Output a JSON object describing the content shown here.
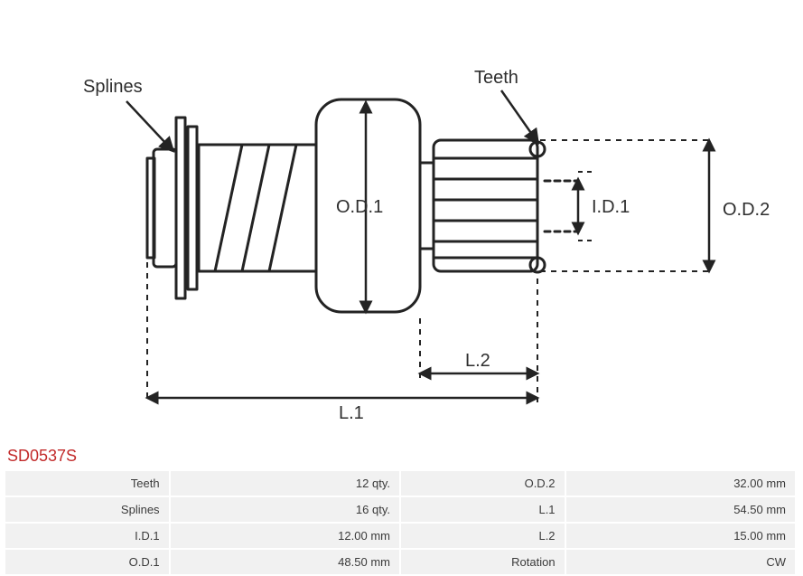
{
  "diagram": {
    "labels": {
      "splines": "Splines",
      "teeth": "Teeth",
      "od1": "O.D.1",
      "od2": "O.D.2",
      "id1": "I.D.1",
      "l1": "L.1",
      "l2": "L.2"
    },
    "colors": {
      "stroke": "#232323",
      "text": "#2e2e2e",
      "background": "#ffffff"
    },
    "stroke_width": 3
  },
  "part": {
    "code": "SD0537S",
    "code_color": "#c22a2a"
  },
  "specs": {
    "rows": [
      {
        "k1": "Teeth",
        "v1": "12 qty.",
        "k2": "O.D.2",
        "v2": "32.00 mm"
      },
      {
        "k1": "Splines",
        "v1": "16 qty.",
        "k2": "L.1",
        "v2": "54.50 mm"
      },
      {
        "k1": "I.D.1",
        "v1": "12.00 mm",
        "k2": "L.2",
        "v2": "15.00 mm"
      },
      {
        "k1": "O.D.1",
        "v1": "48.50 mm",
        "k2": "Rotation",
        "v2": "CW"
      }
    ]
  },
  "style": {
    "row_bg": "#f1f1f1",
    "text_color": "#3a3a3a",
    "font_size_table": 13,
    "font_size_code": 18,
    "font_size_labels": 20
  }
}
